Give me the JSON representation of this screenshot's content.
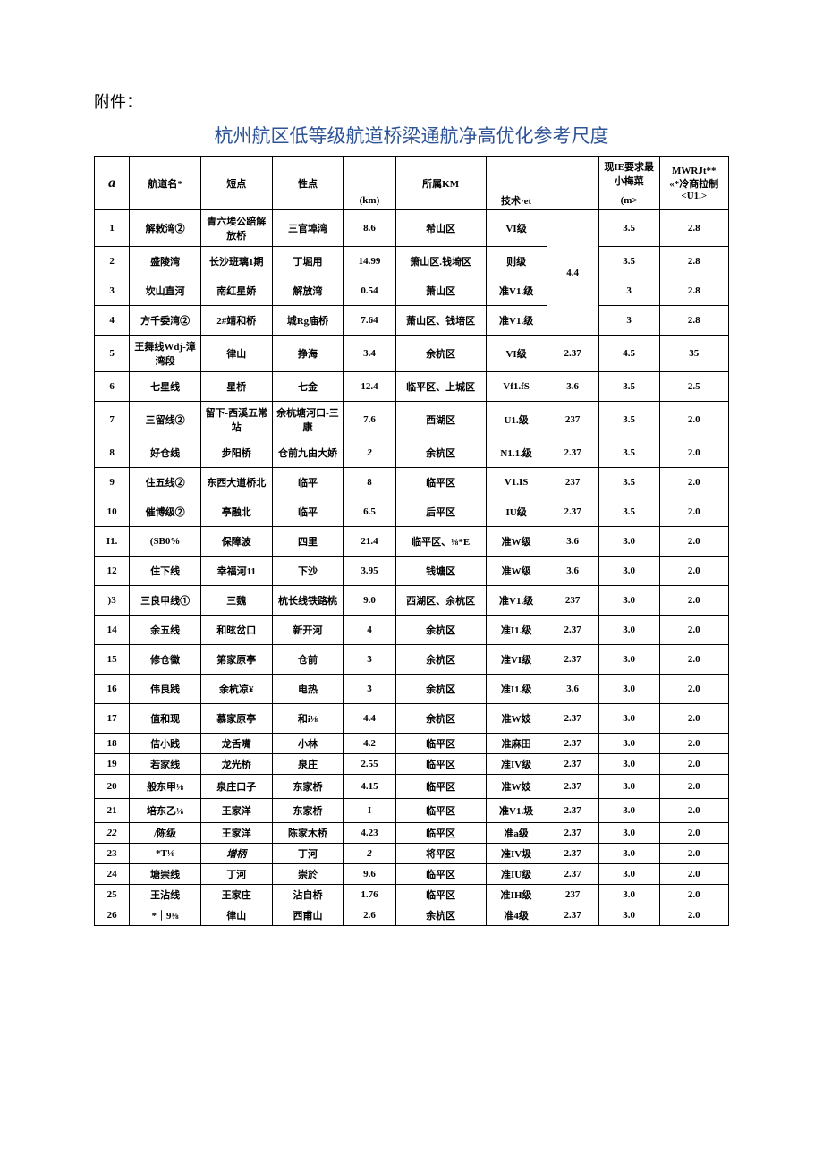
{
  "attachment_label": "附件：",
  "title": "杭州航区低等级航道桥梁通航净高优化参考尺度",
  "header": {
    "col0_icon": "a",
    "col1": "航道名*",
    "col2": "短点",
    "col3": "性点",
    "col4_sub": "(km)",
    "col5": "所属KM",
    "col6_sub": "技术·et",
    "col8_line1": "现IE要求最",
    "col8_line2": "小梅菜",
    "col8_sub": "(m>",
    "col9_line1": "MWRJt**",
    "col9_line2": "«*冷商拉制",
    "col9_line3": "<U1.>"
  },
  "rows": [
    {
      "idx": "1",
      "name": "解敕湾②",
      "start": "青六埃公踣解放桥",
      "end": "三官埠湾",
      "km": "8.6",
      "area": "希山区",
      "tech": "VI级",
      "v1": "",
      "v2": "3.5",
      "v3": "2.8",
      "h": "tall"
    },
    {
      "idx": "2",
      "name": "盛陵湾",
      "start": "长沙班璃1期",
      "end": "丁堀用",
      "km": "14.99",
      "area": "箫山区.钱埼区",
      "tech": "则级",
      "v1_merged": "4.4",
      "v2": "3.5",
      "v3": "2.8",
      "h": "row"
    },
    {
      "idx": "3",
      "name": "坎山直河",
      "start": "南红星娇",
      "end": "解放湾",
      "km": "0.54",
      "area": "萧山区",
      "tech": "准V1.级",
      "v1": "",
      "v2": "3",
      "v3": "2.8",
      "h": "row"
    },
    {
      "idx": "4",
      "name": "方千委湾②",
      "start": "2#靖和桥",
      "end": "城Rg庙桥",
      "km": "7.64",
      "area": "萧山区、钱培区",
      "tech": "准V1.级",
      "v1": "",
      "v2": "3",
      "v3": "2.8",
      "h": "row"
    },
    {
      "idx": "5",
      "name": "王舞线Wdj-漳湾段",
      "start": "律山",
      "end": "挣海",
      "km": "3.4",
      "area": "余杭区",
      "tech": "VI级",
      "v1": "2.37",
      "v2": "4.5",
      "v3": "35",
      "h": "tall"
    },
    {
      "idx": "6",
      "name": "七星线",
      "start": "星桥",
      "end": "七金",
      "km": "12.4",
      "area": "临平区、上城区",
      "tech": "Vf1.fS",
      "v1": "3.6",
      "v2": "3.5",
      "v3": "2.5",
      "h": "row"
    },
    {
      "idx": "7",
      "name": "三留线②",
      "start": "留下-西溪五常站",
      "end": "余杭塘河口-三康",
      "km": "7.6",
      "area": "西湖区",
      "tech": "U1.级",
      "v1": "237",
      "v2": "3.5",
      "v3": "2.0",
      "h": "tall"
    },
    {
      "idx": "8",
      "name": "好仓线",
      "start": "步阳桥",
      "end": "仓前九由大娇",
      "km": "2",
      "km_ital": true,
      "area": "余杭区",
      "tech": "N1.1.级",
      "v1": "2.37",
      "v2": "3.5",
      "v3": "2.0",
      "h": "row"
    },
    {
      "idx": "9",
      "name": "住五线②",
      "start": "东西大道桥北",
      "end": "临平",
      "km": "8",
      "area": "临平区",
      "tech": "V1.IS",
      "v1": "237",
      "v2": "3.5",
      "v3": "2.0",
      "h": "row"
    },
    {
      "idx": "10",
      "name": "催博级②",
      "start": "亭融北",
      "end": "临平",
      "km": "6.5",
      "area": "后平区",
      "tech": "IU级",
      "v1": "2.37",
      "v2": "3.5",
      "v3": "2.0",
      "h": "row"
    },
    {
      "idx": "I1.",
      "name": "(SB0%",
      "start": "保障波",
      "end": "四里",
      "km": "21.4",
      "area": "临平区、⅛*E",
      "tech": "准W级",
      "v1": "3.6",
      "v2": "3.0",
      "v3": "2.0",
      "h": "row"
    },
    {
      "idx": "12",
      "name": "住下线",
      "start": "幸福河11",
      "end": "下沙",
      "km": "3.95",
      "area": "钱塘区",
      "tech": "准W级",
      "v1": "3.6",
      "v2": "3.0",
      "v3": "2.0",
      "h": "row"
    },
    {
      "idx": ")3",
      "name": "三良甲线①",
      "start": "三魏",
      "end": "杭长线铁路桃",
      "km": "9.0",
      "area": "西湖区、余杭区",
      "tech": "准V1.级",
      "v1": "237",
      "v2": "3.0",
      "v3": "2.0",
      "h": "row"
    },
    {
      "idx": "14",
      "name": "余五线",
      "start": "和昡岔口",
      "end": "新开河",
      "km": "4",
      "area": "余杭区",
      "tech": "准I1.级",
      "v1": "2.37",
      "v2": "3.0",
      "v3": "2.0",
      "h": "row"
    },
    {
      "idx": "15",
      "name": "修仓徽",
      "start": "第家原亭",
      "end": "仓前",
      "km": "3",
      "area": "余杭区",
      "tech": "准VI级",
      "v1": "2.37",
      "v2": "3.0",
      "v3": "2.0",
      "h": "row"
    },
    {
      "idx": "16",
      "name": "伟良践",
      "start": "余杭凉¥",
      "end": "电热",
      "km": "3",
      "area": "余杭区",
      "tech": "准I1.级",
      "v1": "3.6",
      "v2": "3.0",
      "v3": "2.0",
      "h": "row"
    },
    {
      "idx": "17",
      "name": "值和现",
      "start": "慕家原亭",
      "end": "和i⅛",
      "km": "4.4",
      "area": "余杭区",
      "tech": "准W妓",
      "v1": "2.37",
      "v2": "3.0",
      "v3": "2.0",
      "h": "row"
    },
    {
      "idx": "18",
      "name": "佶小践",
      "start": "龙舌嘴",
      "end": "小林",
      "km": "4.2",
      "area": "临平区",
      "tech": "准麻田",
      "v1": "2.37",
      "v2": "3.0",
      "v3": "2.0",
      "h": "short"
    },
    {
      "idx": "19",
      "name": "若家线",
      "start": "龙光桥",
      "end": "泉庄",
      "km": "2.55",
      "area": "临平区",
      "tech": "准IV级",
      "v1": "2.37",
      "v2": "3.0",
      "v3": "2.0",
      "h": "short"
    },
    {
      "idx": "20",
      "name": "般东甲⅛",
      "start": "泉庄口子",
      "end": "东家桥",
      "km": "4.15",
      "area": "临平区",
      "tech": "准W妓",
      "v1": "2.37",
      "v2": "3.0",
      "v3": "2.0",
      "h": "med"
    },
    {
      "idx": "21",
      "name": "培东乙⅛",
      "start": "王家洋",
      "end": "东家桥",
      "km": "I",
      "area": "临平区",
      "tech": "准V1.圾",
      "v1": "2.37",
      "v2": "3.0",
      "v3": "2.0",
      "h": "med"
    },
    {
      "idx": "22",
      "idx_ital": true,
      "name": "/陈级",
      "start": "王家洋",
      "end": "陈家木桥",
      "km": "4.23",
      "area": "临平区",
      "tech": "准a级",
      "v1": "2.37",
      "v2": "3.0",
      "v3": "2.0",
      "h": "short"
    },
    {
      "idx": "23",
      "name": "*T⅛",
      "start": "增柄",
      "start_ital": true,
      "end": "丁河",
      "km": "2",
      "km_ital": true,
      "area": "将平区",
      "tech": "准IV圾",
      "v1": "2.37",
      "v2": "3.0",
      "v3": "2.0",
      "h": "short"
    },
    {
      "idx": "24",
      "name": "塘崇线",
      "start": "丁河",
      "end": "崇於",
      "km": "9.6",
      "area": "临平区",
      "tech": "准IU级",
      "v1": "2.37",
      "v2": "3.0",
      "v3": "2.0",
      "h": "short"
    },
    {
      "idx": "25",
      "name": "王沾线",
      "start": "王家庄",
      "end": "沾自桥",
      "km": "1.76",
      "area": "临平区",
      "tech": "准IH级",
      "v1": "237",
      "v2": "3.0",
      "v3": "2.0",
      "h": "short"
    },
    {
      "idx": "26",
      "name": "*｜9⅛",
      "start": "律山",
      "end": "西甫山",
      "km": "2.6",
      "area": "余杭区",
      "tech": "准4级",
      "v1": "2.37",
      "v2": "3.0",
      "v3": "2.0",
      "h": "short"
    }
  ]
}
